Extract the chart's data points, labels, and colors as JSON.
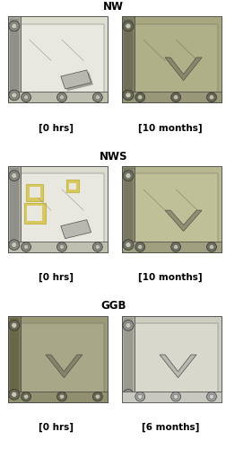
{
  "fig_width": 2.53,
  "fig_height": 5.0,
  "dpi": 100,
  "background_color": "#ffffff",
  "title_fontsize": 8.5,
  "label_fontsize": 7.5,
  "title_fontweight": "bold",
  "rows": [
    {
      "title": "NW",
      "left_caption": "[0 hrs]",
      "right_caption": "[10 months]",
      "left_colors": {
        "bg": "#c8c8b8",
        "panel": "#ddddd0",
        "panel_light": "#e8e8e0",
        "rail": "#a8a8a0",
        "rail_dark": "#909088",
        "strip": "#c0c0b0",
        "strip_dark": "#a8a8a0",
        "bolt": "#888880",
        "wedge": "#b8b8b0",
        "wedge_dark": "#a0a098"
      },
      "right_colors": {
        "bg": "#909070",
        "panel": "#a8a880",
        "panel_light": "#b0b088",
        "rail": "#808068",
        "rail_dark": "#707058",
        "strip": "#989878",
        "strip_dark": "#888868",
        "bolt": "#686850",
        "wedge": "#888868",
        "wedge_dark": "#787858"
      }
    },
    {
      "title": "NWS",
      "left_caption": "[0 hrs]",
      "right_caption": "[10 months]",
      "left_colors": {
        "bg": "#c5c5b5",
        "panel": "#dcdcd0",
        "panel_light": "#e8e8e0",
        "rail": "#a8a8a0",
        "rail_dark": "#909088",
        "strip": "#c0c0b0",
        "strip_dark": "#a8a8a0",
        "bolt": "#888880",
        "wedge": "#b8b8b0",
        "wedge_dark": "#a0a098",
        "yellow_frame": "#c8b850",
        "yellow_fill": "#d8c860"
      },
      "right_colors": {
        "bg": "#aaa880",
        "panel": "#b8b890",
        "panel_light": "#c0c098",
        "rail": "#888870",
        "rail_dark": "#787860",
        "strip": "#a0a080",
        "strip_dark": "#909070",
        "bolt": "#707060",
        "wedge": "#909070",
        "wedge_dark": "#808060"
      }
    },
    {
      "title": "GGB",
      "left_caption": "[0 hrs]",
      "right_caption": "[6 months]",
      "left_colors": {
        "bg": "#888868",
        "panel": "#9a9a78",
        "panel_light": "#a8a888",
        "rail": "#787858",
        "rail_dark": "#686848",
        "strip": "#909070",
        "strip_dark": "#808060",
        "bolt": "#686850",
        "wedge": "#848468",
        "wedge_dark": "#747458"
      },
      "right_colors": {
        "bg": "#c0bfb0",
        "panel": "#ccccc0",
        "panel_light": "#d8d8cc",
        "rail": "#adadA0",
        "rail_dark": "#9a9a90",
        "strip": "#c0c0b8",
        "strip_dark": "#b0b0a8",
        "bolt": "#909090",
        "wedge": "#b8b8b0",
        "wedge_dark": "#a8a8a0"
      }
    }
  ]
}
